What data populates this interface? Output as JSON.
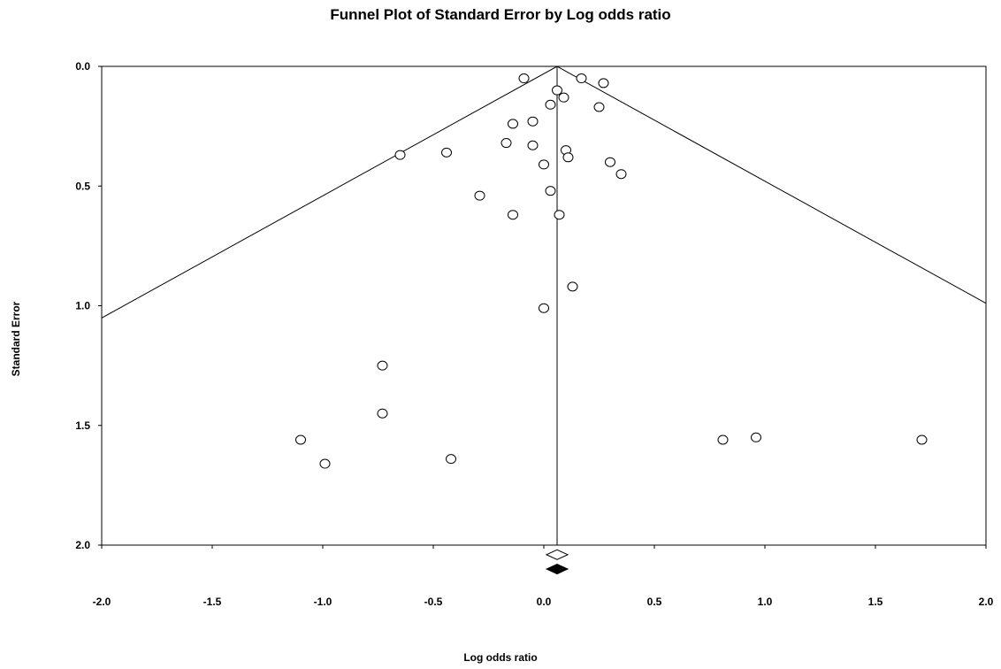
{
  "chart_data": {
    "type": "scatter",
    "title": "Funnel Plot of Standard Error by Log odds ratio",
    "xlabel": "Log odds ratio",
    "ylabel": "Standard Error",
    "xlim": [
      -2.0,
      2.0
    ],
    "ylim": [
      0.0,
      2.0
    ],
    "y_inverted": true,
    "xticks": [
      "-2.0",
      "-1.5",
      "-1.0",
      "-0.5",
      "0.0",
      "0.5",
      "1.0",
      "1.5",
      "2.0"
    ],
    "yticks": [
      "0.0",
      "0.5",
      "1.0",
      "1.5",
      "2.0"
    ],
    "grid": false,
    "pooled_estimate": 0.06,
    "funnel": {
      "center": 0.06,
      "z": 1.96
    },
    "points": [
      {
        "x": -0.09,
        "y": 0.05
      },
      {
        "x": 0.17,
        "y": 0.05
      },
      {
        "x": 0.27,
        "y": 0.07
      },
      {
        "x": 0.06,
        "y": 0.1
      },
      {
        "x": 0.09,
        "y": 0.13
      },
      {
        "x": 0.03,
        "y": 0.16
      },
      {
        "x": 0.25,
        "y": 0.17
      },
      {
        "x": -0.05,
        "y": 0.23
      },
      {
        "x": -0.14,
        "y": 0.24
      },
      {
        "x": -0.17,
        "y": 0.32
      },
      {
        "x": -0.05,
        "y": 0.33
      },
      {
        "x": 0.1,
        "y": 0.35
      },
      {
        "x": -0.44,
        "y": 0.36
      },
      {
        "x": 0.11,
        "y": 0.38
      },
      {
        "x": -0.65,
        "y": 0.37
      },
      {
        "x": 0.3,
        "y": 0.4
      },
      {
        "x": 0.0,
        "y": 0.41
      },
      {
        "x": 0.35,
        "y": 0.45
      },
      {
        "x": 0.03,
        "y": 0.52
      },
      {
        "x": -0.29,
        "y": 0.54
      },
      {
        "x": -0.14,
        "y": 0.62
      },
      {
        "x": 0.07,
        "y": 0.62
      },
      {
        "x": 0.13,
        "y": 0.92
      },
      {
        "x": 0.0,
        "y": 1.01
      },
      {
        "x": -0.73,
        "y": 1.25
      },
      {
        "x": -0.73,
        "y": 1.45
      },
      {
        "x": -1.1,
        "y": 1.56
      },
      {
        "x": -0.99,
        "y": 1.66
      },
      {
        "x": -0.42,
        "y": 1.64
      },
      {
        "x": 0.81,
        "y": 1.56
      },
      {
        "x": 0.96,
        "y": 1.55
      },
      {
        "x": 1.71,
        "y": 1.56
      }
    ],
    "summary_markers": [
      {
        "style": "open",
        "x": 0.06,
        "y": 2.04
      },
      {
        "style": "filled",
        "x": 0.06,
        "y": 2.1
      }
    ]
  }
}
